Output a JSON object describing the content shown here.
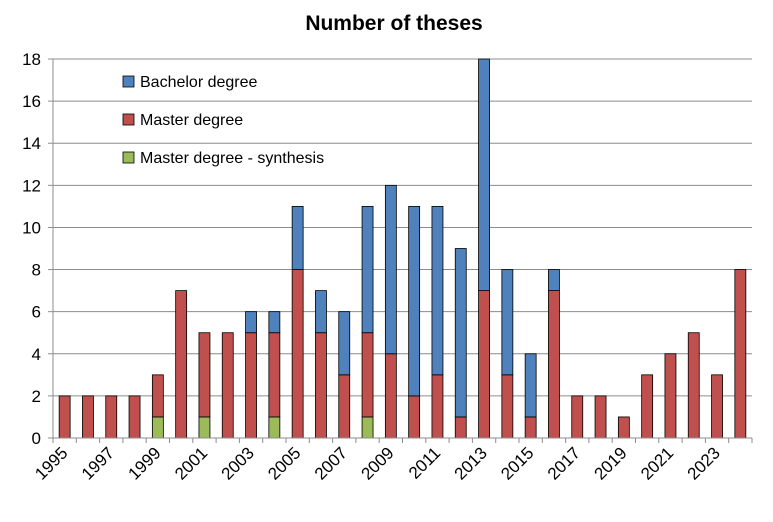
{
  "chart_data": {
    "type": "bar",
    "stacked": true,
    "title": "Number of theses",
    "xlabel": "",
    "ylabel": "",
    "ylim": [
      0,
      18
    ],
    "yticks": [
      0,
      2,
      4,
      6,
      8,
      10,
      12,
      14,
      16,
      18
    ],
    "grid": true,
    "legend_position": "top-left",
    "categories": [
      1995,
      1996,
      1997,
      1998,
      1999,
      2000,
      2001,
      2002,
      2003,
      2004,
      2005,
      2006,
      2007,
      2008,
      2009,
      2010,
      2011,
      2012,
      2013,
      2014,
      2015,
      2016,
      2017,
      2018,
      2019,
      2020,
      2021,
      2022,
      2023,
      2024
    ],
    "x_tick_labels": [
      "1995",
      "1997",
      "1999",
      "2001",
      "2003",
      "2005",
      "2007",
      "2009",
      "2011",
      "2013",
      "2015",
      "2017",
      "2019",
      "2021",
      "2023"
    ],
    "series": [
      {
        "name": "Master degree - synthesis",
        "color": "#9bbb59",
        "values": [
          0,
          0,
          0,
          0,
          1,
          0,
          1,
          0,
          0,
          1,
          0,
          0,
          0,
          1,
          0,
          0,
          0,
          0,
          0,
          0,
          0,
          0,
          0,
          0,
          0,
          0,
          0,
          0,
          0,
          0
        ]
      },
      {
        "name": "Master degree",
        "color": "#c0504d",
        "values": [
          2,
          2,
          2,
          2,
          2,
          7,
          4,
          5,
          5,
          4,
          8,
          5,
          3,
          4,
          4,
          2,
          3,
          1,
          7,
          3,
          1,
          7,
          2,
          2,
          1,
          3,
          4,
          5,
          3,
          8
        ]
      },
      {
        "name": "Bachelor degree",
        "color": "#4f81bd",
        "values": [
          0,
          0,
          0,
          0,
          0,
          0,
          0,
          0,
          1,
          1,
          3,
          2,
          3,
          6,
          8,
          9,
          8,
          8,
          11,
          5,
          3,
          1,
          0,
          0,
          0,
          0,
          0,
          0,
          0,
          0
        ]
      }
    ],
    "legend_order": [
      "Bachelor degree",
      "Master degree",
      "Master degree - synthesis"
    ]
  }
}
